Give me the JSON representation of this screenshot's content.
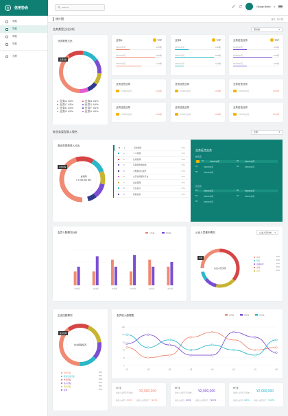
{
  "app": {
    "title": "信用协会",
    "logo_char": "信"
  },
  "search": {
    "placeholder": "Search..."
  },
  "user": {
    "name": "George Martin"
  },
  "sidebar": {
    "items": [
      {
        "label": "导航"
      },
      {
        "label": "导航"
      },
      {
        "label": "导航"
      },
      {
        "label": "导航"
      }
    ],
    "footer": {
      "label": "互联"
    }
  },
  "page": {
    "title": "统计图",
    "breadcrumb_home": "首页",
    "breadcrumb_sep": "/",
    "breadcrumb_current": "统计图"
  },
  "colors": {
    "brand": "#0f7f74",
    "coral": "#f08a73",
    "red": "#d64545",
    "purple": "#7b4fd1",
    "cyan": "#2ab7c9",
    "olive": "#c8b431",
    "navy": "#2f3a8f",
    "pink": "#e45bd3",
    "gold": "#f5b400"
  },
  "section1": {
    "title": "业务类型占比分析",
    "select": "按省级"
  },
  "biz_types": {
    "title": "业务类型占比",
    "center": "业务总数",
    "badge": "全部业务",
    "legend": [
      {
        "label": "业务A",
        "pct": "45%",
        "color": "#f08a73"
      },
      {
        "label": "业务B",
        "pct": "45%",
        "color": "#d64545"
      },
      {
        "label": "业务C",
        "pct": "45%",
        "color": "#2ab7c9"
      },
      {
        "label": "业务D",
        "pct": "45%",
        "color": "#7b4fd1"
      },
      {
        "label": "业务E",
        "pct": "45%",
        "color": "#c8b431"
      },
      {
        "label": "业务F",
        "pct": "45%",
        "color": "#2f3a8f"
      },
      {
        "label": "业务G",
        "pct": "45%",
        "color": "#f08a73"
      },
      {
        "label": "业务H",
        "pct": "45%",
        "color": "#e45bd3"
      }
    ]
  },
  "biz_cards": [
    {
      "title": "业务A",
      "top": "TOP",
      "color": "#f08a73",
      "rows": [
        {
          "name": "XXXXX公司",
          "val": "1234笔"
        },
        {
          "name": "XXXXX公司",
          "val": "1234笔"
        },
        {
          "name": "XXXXX公司",
          "val": "1234笔"
        }
      ],
      "fills": [
        0.3,
        0.85,
        0.55
      ]
    },
    {
      "title": "业务B",
      "top": "TOP",
      "color": "#2ab7c9",
      "rows": [
        {
          "name": "XXXXX公司",
          "val": "1234笔"
        },
        {
          "name": "XXXXX公司",
          "val": "1234笔"
        },
        {
          "name": "XXXXX公司",
          "val": "1234笔"
        }
      ],
      "fills": [
        0.3,
        0.85,
        0.2
      ]
    },
    {
      "title": "业务征信业务",
      "top": "TOP",
      "color": "#7b4fd1",
      "rows": [
        {
          "name": "XXXXX公司",
          "val": "1234笔"
        },
        {
          "name": "XXXXX公司",
          "val": "1234笔"
        },
        {
          "name": "XXXXX公司",
          "val": "1234笔"
        }
      ],
      "fills": [
        0.3,
        0.85,
        0.3
      ]
    }
  ],
  "lic_cards": [
    {
      "title": "业务征信业务",
      "company": "XXXXX公司",
      "count": "1234笔"
    },
    {
      "title": "业务征信业务",
      "company": "XXXXX公司",
      "count": "1234笔"
    },
    {
      "title": "业务征信业务",
      "company": "XXXXX公司",
      "count": "1234笔"
    },
    {
      "title": "业务征信业务",
      "company": "XXXXX公司",
      "count": "1234笔"
    },
    {
      "title": "业务征信业务",
      "company": "XXXXX公司",
      "count": "1234笔"
    },
    {
      "title": "业务征信业务",
      "company": "XXXXX公司",
      "count": "1234笔"
    }
  ],
  "section2": {
    "title": "各业务类型收入排名",
    "select": "全部"
  },
  "income_pie": {
    "title": "各业务类型收入占比",
    "badge": "贷款担保",
    "center": "总利润",
    "value": "¥ 1,000,000,000"
  },
  "rank_list": [
    {
      "idx": "1",
      "name": "贷款担保",
      "pct": "45%",
      "color": "#f08a73"
    },
    {
      "idx": "2",
      "name": "个人担保",
      "pct": "45%",
      "color": "#2ab7c9"
    },
    {
      "idx": "3",
      "name": "信用管理",
      "pct": "45%",
      "color": "#d64545"
    },
    {
      "idx": "4",
      "name": "互联网金融担保",
      "pct": "45%",
      "color": "#7b4fd1"
    },
    {
      "idx": "5",
      "name": "大数据征信服务",
      "pct": "45%",
      "color": "#2f3a8f"
    },
    {
      "idx": "6",
      "name": "公开信用服务平台",
      "pct": "45%",
      "color": "#e45bd3"
    },
    {
      "idx": "7",
      "name": "商业保理",
      "pct": "45%",
      "color": "#c8b431"
    },
    {
      "idx": "8",
      "name": "企业征信",
      "pct": "45%",
      "color": "#2ab7c9"
    },
    {
      "idx": "9",
      "name": "商账追收",
      "pct": "45%",
      "color": "#7b4fd1"
    }
  ],
  "green_panel": {
    "title": "业务征信业务",
    "sub1": "前五名",
    "top5": [
      {
        "rank": "01",
        "name": "XXXXX公司",
        "rank2": "02",
        "name2": "XXXXX公司"
      },
      {
        "rank": "03",
        "name": "XXXXX公司",
        "rank2": "04",
        "name2": "XXXXX公司"
      },
      {
        "rank": "05",
        "name": "XXXXX公司",
        "rank2": "",
        "name2": ""
      }
    ],
    "sub2": "后五名",
    "bottom5": [
      {
        "rank": "01",
        "name": "XXXXX公司",
        "rank2": "02",
        "name2": "XXXXX公司"
      },
      {
        "rank": "03",
        "name": "XXXXX公司",
        "rank2": "04",
        "name2": "XXXXX公司"
      },
      {
        "rank": "05",
        "name": "XXXXX公司",
        "rank2": "",
        "name2": ""
      }
    ]
  },
  "members": {
    "title": "会员人数情况分析"
  },
  "staff": {
    "title": "从业人员基本情况",
    "select": "从业人员分布",
    "badge": "学历",
    "center": "从业人员文化",
    "legend": [
      {
        "label": "本科",
        "pct": "45%",
        "color": "#f08a73"
      },
      {
        "label": "研究",
        "pct": "45%",
        "color": "#2ab7c9"
      },
      {
        "label": "高级职中",
        "pct": "45%",
        "color": "#7b4fd1"
      },
      {
        "label": "大专",
        "pct": "45%",
        "color": "#d64545"
      },
      {
        "label": "初中",
        "pct": "45%",
        "color": "#c8b431"
      }
    ]
  },
  "equity": {
    "title": "企业控股情况",
    "badge": "股东结构",
    "center": "企业控股情况",
    "legend": [
      {
        "label": "国有控股",
        "pct": "45%",
        "color": "#f08a73"
      },
      {
        "label": "民营企业控股",
        "pct": "45%",
        "color": "#2ab7c9"
      },
      {
        "label": "外商控股",
        "pct": "45%",
        "color": "#d64545"
      },
      {
        "label": "私人控股",
        "pct": "45%",
        "color": "#7b4fd1"
      },
      {
        "label": "国有控股",
        "pct": "45%",
        "color": "#c8b431"
      },
      {
        "label": "其他",
        "pct": "45%",
        "color": "#7b4fd1"
      }
    ]
  },
  "trend": {
    "title": "会员收入趋势图"
  },
  "stat_cards": [
    {
      "label": "A行业",
      "sub": "总收入占所有行业收入",
      "value": "¥2,000,000",
      "color": "#f08a73",
      "pct1": "30%",
      "pct2": "+10%"
    },
    {
      "label": "B行业",
      "sub": "总收入占所有行业收入",
      "value": "¥2,000,000",
      "color": "#7b4fd1",
      "pct1": "30%",
      "pct2": "+10%"
    },
    {
      "label": "B行业",
      "sub": "总收入占所有行业收入",
      "value": "¥2,000,000",
      "color": "#2ab7c9",
      "pct1": "30%",
      "pct2": "+10%"
    }
  ],
  "chart_data": [
    {
      "type": "bar",
      "categories": [
        "2019年",
        "2019年",
        "2019年",
        "2019年",
        "2019年",
        "2019年"
      ],
      "series": [
        {
          "name": "A行业",
          "color": "#f08a73",
          "values": [
            120,
            120,
            220,
            120,
            220,
            160
          ]
        },
        {
          "name": "B行业",
          "color": "#7b4fd1",
          "values": [
            160,
            250,
            160,
            260,
            160,
            200
          ]
        }
      ],
      "ylim": [
        0,
        300
      ],
      "yticks": [
        "300",
        "200",
        "100",
        "0"
      ]
    },
    {
      "type": "line",
      "categories": [
        "1月",
        "2月",
        "3月",
        "4月",
        "5月",
        "6月",
        "7月",
        "8月"
      ],
      "series": [
        {
          "name": "A行业",
          "color": "#f08a73",
          "values": [
            70,
            30,
            40,
            110,
            130,
            100,
            60,
            70
          ]
        },
        {
          "name": "B行业",
          "color": "#7b4fd1",
          "values": [
            85,
            120,
            80,
            40,
            40,
            130,
            110,
            50
          ]
        },
        {
          "name": "C行业",
          "color": "#2ab7c9",
          "values": [
            120,
            70,
            100,
            60,
            80,
            60,
            40,
            100
          ]
        }
      ],
      "ylim": [
        0,
        150
      ],
      "yticks": [
        "150",
        "120",
        "90",
        "60",
        "30",
        "0"
      ]
    }
  ]
}
